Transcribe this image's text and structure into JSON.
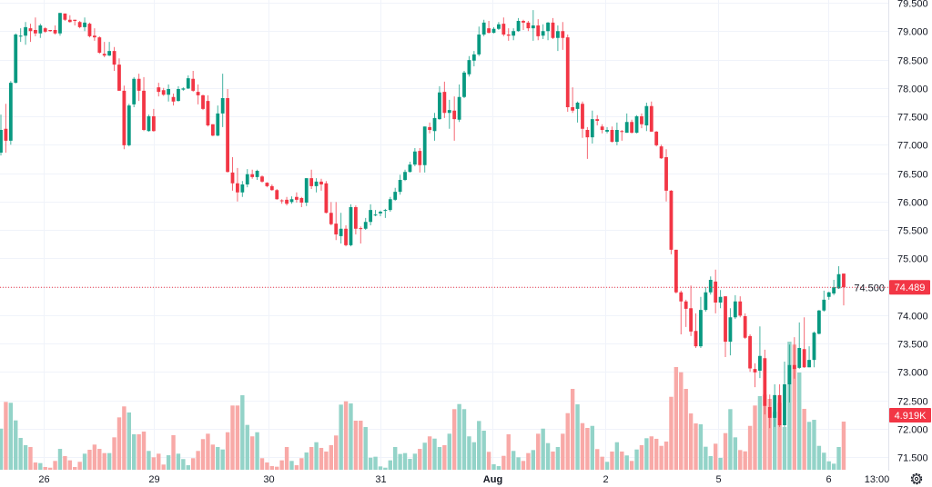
{
  "chart_data": {
    "type": "candlestick",
    "title": "",
    "colors": {
      "up": "#089981",
      "down": "#f23645",
      "volume_up": "#93d3c8",
      "volume_down": "#f8a9a7",
      "grid": "#f0f3fa",
      "last_price": "#f23645"
    },
    "ylim": [
      71.26,
      79.548
    ],
    "y_ticks": [
      "79.500",
      "79.000",
      "78.500",
      "78.000",
      "77.500",
      "77.000",
      "76.500",
      "76.000",
      "75.500",
      "75.000",
      "74.500",
      "74.000",
      "73.500",
      "73.000",
      "72.500",
      "72.000",
      "71.500"
    ],
    "x_ticks": [
      {
        "label": "26",
        "index": 8.7
      },
      {
        "label": "29",
        "index": 31.0
      },
      {
        "label": "30",
        "index": 54.3
      },
      {
        "label": "31",
        "index": 77.0
      },
      {
        "label": "Aug",
        "index": 99.7,
        "bold": true
      },
      {
        "label": "2",
        "index": 122.6
      },
      {
        "label": "5",
        "index": 145.5
      },
      {
        "label": "6",
        "index": 167.9
      },
      {
        "label": "13:00",
        "index": 177.7
      }
    ],
    "last_price": {
      "value": 74.489,
      "label": "74.489"
    },
    "last_volume": {
      "value": 4.919,
      "label": "4.919K"
    },
    "volume_unit": "K",
    "ohlc": [
      [
        76.86,
        77.53,
        76.81,
        77.26
      ],
      [
        77.28,
        77.72,
        76.86,
        77.07
      ],
      [
        77.07,
        78.12,
        77.0,
        78.09
      ],
      [
        78.09,
        78.96,
        78.08,
        78.94
      ],
      [
        78.91,
        79.05,
        78.81,
        78.92
      ],
      [
        78.92,
        79.16,
        78.76,
        79.07
      ],
      [
        79.05,
        79.13,
        78.81,
        79.0
      ],
      [
        79.02,
        79.24,
        78.91,
        78.96
      ],
      [
        78.96,
        79.13,
        78.88,
        79.1
      ],
      [
        79.05,
        79.07,
        78.97,
        78.99
      ],
      [
        79.02,
        79.02,
        78.99,
        79.0
      ],
      [
        79.02,
        79.1,
        78.94,
        78.96
      ],
      [
        78.96,
        79.32,
        78.92,
        79.32
      ],
      [
        79.31,
        79.31,
        79.18,
        79.2
      ],
      [
        79.2,
        79.28,
        79.15,
        79.16
      ],
      [
        79.2,
        79.2,
        79.1,
        79.18
      ],
      [
        79.16,
        79.18,
        79.05,
        79.07
      ],
      [
        79.07,
        79.24,
        79.0,
        79.15
      ],
      [
        79.13,
        79.15,
        78.89,
        78.91
      ],
      [
        78.92,
        79.05,
        78.83,
        78.89
      ],
      [
        78.89,
        78.91,
        78.6,
        78.62
      ],
      [
        78.6,
        78.81,
        78.54,
        78.57
      ],
      [
        78.57,
        78.81,
        78.56,
        78.65
      ],
      [
        78.65,
        78.72,
        78.3,
        78.41
      ],
      [
        78.41,
        78.52,
        77.95,
        77.95
      ],
      [
        77.95,
        78.04,
        76.92,
        76.99
      ],
      [
        76.99,
        77.72,
        76.97,
        77.69
      ],
      [
        77.71,
        78.19,
        77.66,
        78.16
      ],
      [
        78.16,
        78.25,
        77.77,
        77.95
      ],
      [
        77.95,
        78.19,
        77.24,
        77.26
      ],
      [
        77.24,
        77.53,
        77.23,
        77.5
      ],
      [
        77.5,
        77.63,
        77.23,
        77.24
      ],
      [
        78.01,
        78.09,
        77.85,
        77.93
      ],
      [
        77.96,
        78.0,
        77.86,
        77.88
      ],
      [
        77.88,
        78.06,
        77.76,
        77.98
      ],
      [
        77.84,
        77.9,
        77.69,
        77.76
      ],
      [
        77.77,
        78.03,
        77.76,
        77.98
      ],
      [
        77.97,
        78.01,
        77.95,
        77.99
      ],
      [
        77.99,
        78.22,
        77.98,
        78.17
      ],
      [
        78.16,
        78.3,
        77.93,
        77.95
      ],
      [
        77.93,
        78.06,
        77.71,
        77.87
      ],
      [
        77.87,
        77.88,
        77.61,
        77.63
      ],
      [
        77.77,
        77.87,
        77.32,
        77.34
      ],
      [
        77.36,
        77.36,
        77.15,
        77.16
      ],
      [
        77.16,
        77.69,
        77.15,
        77.55
      ],
      [
        77.55,
        78.25,
        77.31,
        77.82
      ],
      [
        77.82,
        77.98,
        76.51,
        76.52
      ],
      [
        76.51,
        76.78,
        76.19,
        76.32
      ],
      [
        76.32,
        76.59,
        76.0,
        76.16
      ],
      [
        76.16,
        76.36,
        76.08,
        76.3
      ],
      [
        76.3,
        76.57,
        76.25,
        76.48
      ],
      [
        76.48,
        76.56,
        76.4,
        76.43
      ],
      [
        76.43,
        76.56,
        76.38,
        76.54
      ],
      [
        76.44,
        76.46,
        76.33,
        76.35
      ],
      [
        76.33,
        76.34,
        76.25,
        76.27
      ],
      [
        76.27,
        76.3,
        76.19,
        76.2
      ],
      [
        76.2,
        76.22,
        76.03,
        76.04
      ],
      [
        76.02,
        76.04,
        75.96,
        76.01
      ],
      [
        76.03,
        76.08,
        75.93,
        75.96
      ],
      [
        75.99,
        76.09,
        75.96,
        76.04
      ],
      [
        76.08,
        76.16,
        75.98,
        76.03
      ],
      [
        76.06,
        76.08,
        75.9,
        75.98
      ],
      [
        75.98,
        76.41,
        75.92,
        76.41
      ],
      [
        76.41,
        76.56,
        76.22,
        76.27
      ],
      [
        76.27,
        76.41,
        76.16,
        76.35
      ],
      [
        76.35,
        76.4,
        76.19,
        76.3
      ],
      [
        76.32,
        76.36,
        75.79,
        75.8
      ],
      [
        75.8,
        75.99,
        75.58,
        75.6
      ],
      [
        75.61,
        75.99,
        75.32,
        75.42
      ],
      [
        75.39,
        75.8,
        75.26,
        75.52
      ],
      [
        75.52,
        75.58,
        75.21,
        75.23
      ],
      [
        75.23,
        75.95,
        75.21,
        75.9
      ],
      [
        75.9,
        75.93,
        75.42,
        75.52
      ],
      [
        75.53,
        75.56,
        75.26,
        75.52
      ],
      [
        75.52,
        75.71,
        75.5,
        75.64
      ],
      [
        75.64,
        75.95,
        75.58,
        75.85
      ],
      [
        75.76,
        75.85,
        75.74,
        75.77
      ],
      [
        75.79,
        75.84,
        75.74,
        75.82
      ],
      [
        75.84,
        75.87,
        75.71,
        75.85
      ],
      [
        75.85,
        76.08,
        75.82,
        76.04
      ],
      [
        76.03,
        76.24,
        76.01,
        76.17
      ],
      [
        76.17,
        76.47,
        76.12,
        76.38
      ],
      [
        76.38,
        76.56,
        76.36,
        76.52
      ],
      [
        76.52,
        76.7,
        76.51,
        76.65
      ],
      [
        76.65,
        76.94,
        76.62,
        76.88
      ],
      [
        76.89,
        76.94,
        76.51,
        76.64
      ],
      [
        76.64,
        77.32,
        76.51,
        77.32
      ],
      [
        77.31,
        77.39,
        77.2,
        77.26
      ],
      [
        77.24,
        77.56,
        77.07,
        77.47
      ],
      [
        77.45,
        78.03,
        77.44,
        77.92
      ],
      [
        77.93,
        78.11,
        77.47,
        77.56
      ],
      [
        77.56,
        77.79,
        77.28,
        77.61
      ],
      [
        77.6,
        77.85,
        77.07,
        77.45
      ],
      [
        77.44,
        78.06,
        77.4,
        77.84
      ],
      [
        77.84,
        78.3,
        77.82,
        78.27
      ],
      [
        78.24,
        78.56,
        78.2,
        78.49
      ],
      [
        78.48,
        78.65,
        78.38,
        78.59
      ],
      [
        78.59,
        79.08,
        78.56,
        78.94
      ],
      [
        78.94,
        79.2,
        78.91,
        79.15
      ],
      [
        79.05,
        79.18,
        78.96,
        78.97
      ],
      [
        78.97,
        79.07,
        78.96,
        79.04
      ],
      [
        79.04,
        79.16,
        79.02,
        79.12
      ],
      [
        79.13,
        79.24,
        78.91,
        78.94
      ],
      [
        78.94,
        79.05,
        78.83,
        78.92
      ],
      [
        78.92,
        79.05,
        78.84,
        79.0
      ],
      [
        79.0,
        79.23,
        78.99,
        79.18
      ],
      [
        79.18,
        79.2,
        79.02,
        79.15
      ],
      [
        79.15,
        79.18,
        79.0,
        79.05
      ],
      [
        79.05,
        79.37,
        78.83,
        79.1
      ],
      [
        79.1,
        79.21,
        78.84,
        78.91
      ],
      [
        78.92,
        79.12,
        78.86,
        79.0
      ],
      [
        79.0,
        79.16,
        78.84,
        79.15
      ],
      [
        79.15,
        79.23,
        78.86,
        78.88
      ],
      [
        78.88,
        79.1,
        78.65,
        79.0
      ],
      [
        79.0,
        79.16,
        78.67,
        78.88
      ],
      [
        78.89,
        78.94,
        77.58,
        77.66
      ],
      [
        77.66,
        78.01,
        77.56,
        77.6
      ],
      [
        77.63,
        77.76,
        77.39,
        77.74
      ],
      [
        77.72,
        77.76,
        77.12,
        77.28
      ],
      [
        77.26,
        77.31,
        76.75,
        77.13
      ],
      [
        77.13,
        77.6,
        77.02,
        77.45
      ],
      [
        77.45,
        77.52,
        77.34,
        77.42
      ],
      [
        77.32,
        77.36,
        77.2,
        77.26
      ],
      [
        77.23,
        77.31,
        77.2,
        77.26
      ],
      [
        77.26,
        77.32,
        77.04,
        77.05
      ],
      [
        77.05,
        77.39,
        76.99,
        77.26
      ],
      [
        77.24,
        77.26,
        77.07,
        77.23
      ],
      [
        77.21,
        77.55,
        77.21,
        77.4
      ],
      [
        77.4,
        77.44,
        77.2,
        77.21
      ],
      [
        77.21,
        77.52,
        77.2,
        77.5
      ],
      [
        77.5,
        77.55,
        77.29,
        77.36
      ],
      [
        77.34,
        77.74,
        77.24,
        77.68
      ],
      [
        77.68,
        77.76,
        77.23,
        77.23
      ],
      [
        77.23,
        77.24,
        76.97,
        76.99
      ],
      [
        76.97,
        77.0,
        76.75,
        76.76
      ],
      [
        76.78,
        76.92,
        76.0,
        76.19
      ],
      [
        76.19,
        76.2,
        75.07,
        75.15
      ],
      [
        75.15,
        75.15,
        74.38,
        74.4
      ],
      [
        74.4,
        74.43,
        73.66,
        74.24
      ],
      [
        74.24,
        74.27,
        73.79,
        74.11
      ],
      [
        74.12,
        74.52,
        73.63,
        73.71
      ],
      [
        73.72,
        74.03,
        73.42,
        73.45
      ],
      [
        73.45,
        74.32,
        73.42,
        74.09
      ],
      [
        74.09,
        74.49,
        74.06,
        74.4
      ],
      [
        74.4,
        74.68,
        74.36,
        74.62
      ],
      [
        74.59,
        74.8,
        74.03,
        74.22
      ],
      [
        74.22,
        74.44,
        74.12,
        74.32
      ],
      [
        74.33,
        74.33,
        73.26,
        73.53
      ],
      [
        73.53,
        74.12,
        73.29,
        73.96
      ],
      [
        73.96,
        74.35,
        73.93,
        74.24
      ],
      [
        74.24,
        74.33,
        73.96,
        73.99
      ],
      [
        73.98,
        74.03,
        73.58,
        73.6
      ],
      [
        73.63,
        73.66,
        73.0,
        73.06
      ],
      [
        73.05,
        73.15,
        72.73,
        72.99
      ],
      [
        73.02,
        73.8,
        72.89,
        73.28
      ],
      [
        73.24,
        73.39,
        72.25,
        72.4
      ],
      [
        72.38,
        72.6,
        72.01,
        72.19
      ],
      [
        72.19,
        72.78,
        72.03,
        72.59
      ],
      [
        72.59,
        72.78,
        72.03,
        72.06
      ],
      [
        72.06,
        73.18,
        72.03,
        72.78
      ],
      [
        72.78,
        73.48,
        72.46,
        73.12
      ],
      [
        73.12,
        73.61,
        72.88,
        73.05
      ],
      [
        73.07,
        73.87,
        73.05,
        73.42
      ],
      [
        73.4,
        73.96,
        73.07,
        73.08
      ],
      [
        73.08,
        73.45,
        73.08,
        73.21
      ],
      [
        73.21,
        73.71,
        73.08,
        73.69
      ],
      [
        73.67,
        74.09,
        73.66,
        74.08
      ],
      [
        74.08,
        74.43,
        74.06,
        74.27
      ],
      [
        74.32,
        74.41,
        74.27,
        74.4
      ],
      [
        74.38,
        74.62,
        74.35,
        74.49
      ],
      [
        74.47,
        74.86,
        74.46,
        74.72
      ],
      [
        74.73,
        74.73,
        74.17,
        74.489
      ]
    ],
    "volume": [
      4.2,
      6.93,
      6.84,
      5.04,
      3.25,
      2.51,
      2.32,
      0.74,
      0.68,
      0.28,
      0.21,
      0.9,
      2.13,
      1.39,
      0.96,
      0.28,
      0.81,
      1.64,
      2.04,
      2.57,
      2.13,
      1.7,
      1.7,
      3.31,
      5.35,
      6.47,
      5.85,
      3.62,
      3.62,
      3.9,
      1.92,
      1.27,
      1.64,
      0.53,
      1.48,
      3.53,
      1.64,
      1.09,
      0.46,
      1.18,
      1.92,
      3.13,
      3.68,
      2.57,
      2.32,
      2.07,
      3.83,
      6.56,
      6.56,
      7.61,
      4.58,
      3.41,
      3.83,
      1.18,
      0.74,
      0.37,
      0.31,
      0.96,
      2.32,
      0.9,
      0.46,
      1.18,
      1.76,
      2.32,
      2.81,
      2.23,
      1.86,
      2.51,
      3.5,
      6.65,
      6.99,
      6.77,
      5.01,
      5.01,
      4.36,
      1.23,
      1.33,
      0.34,
      0.21,
      0.96,
      2.32,
      1.61,
      1.7,
      1.11,
      1.64,
      2.13,
      2.76,
      3.41,
      3.18,
      2.32,
      2.51,
      3.68,
      6.19,
      6.71,
      6.19,
      3.41,
      2.81,
      4.98,
      3.99,
      1.83,
      0.56,
      0.37,
      1.42,
      3.62,
      1.92,
      1.27,
      0.9,
      1.7,
      2.01,
      3.68,
      4.2,
      2.72,
      1.86,
      2.32,
      3.68,
      5.78,
      8.26,
      6.68,
      4.76,
      4.27,
      4.48,
      2.11,
      1.33,
      0.81,
      1.86,
      2.81,
      1.86,
      1.46,
      0.9,
      2.07,
      2.51,
      3.22,
      3.41,
      3.16,
      2.44,
      2.88,
      7.45,
      10.49,
      9.96,
      8.26,
      5.75,
      4.73,
      4.64,
      2.35,
      1.39,
      2.66,
      1.21,
      3.74,
      6.19,
      3.31,
      2.01,
      1.88,
      4.48,
      6.56,
      7.52,
      7.67,
      7.24,
      5.91,
      6.84,
      4.36,
      13.08,
      12.78,
      9.93,
      6.22,
      4.89,
      5.1,
      2.44,
      1.74,
      0.86,
      0.62,
      2.32,
      4.919
    ]
  },
  "icons": {
    "settings": "gear-icon"
  }
}
